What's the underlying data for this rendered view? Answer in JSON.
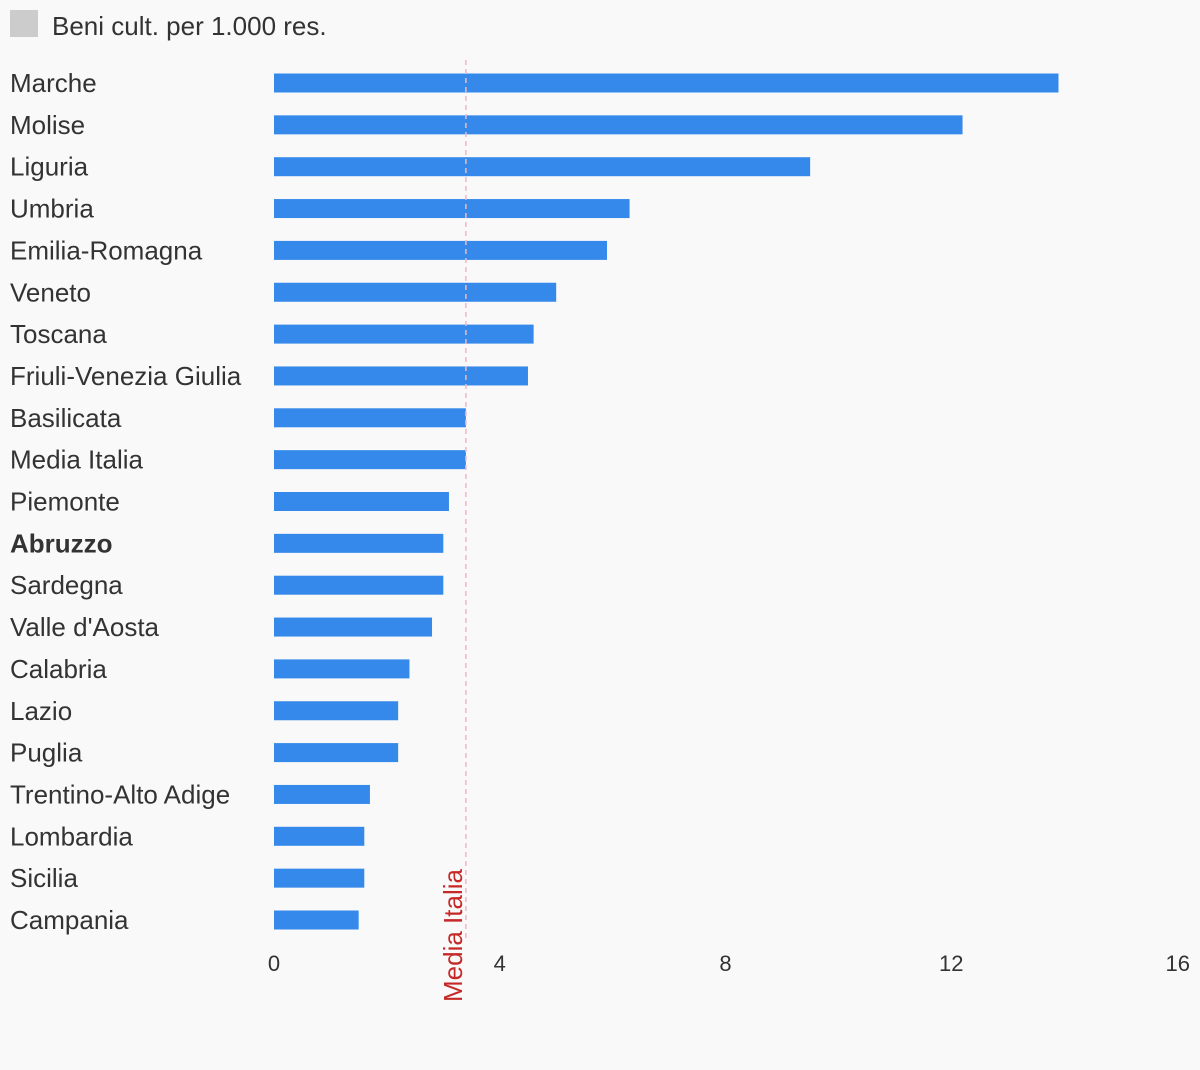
{
  "chart_data": {
    "type": "bar",
    "orientation": "horizontal",
    "categories": [
      "Marche",
      "Molise",
      "Liguria",
      "Umbria",
      "Emilia-Romagna",
      "Veneto",
      "Toscana",
      "Friuli-Venezia Giulia",
      "Basilicata",
      "Media Italia",
      "Piemonte",
      "Abruzzo",
      "Sardegna",
      "Valle d'Aosta",
      "Calabria",
      "Lazio",
      "Puglia",
      "Trentino-Alto Adige",
      "Lombardia",
      "Sicilia",
      "Campania"
    ],
    "highlighted_category": "Abruzzo",
    "series": [
      {
        "name": "Beni cult. per 1.000 res.",
        "values": [
          13.9,
          12.2,
          9.5,
          6.3,
          5.9,
          5.0,
          4.6,
          4.5,
          3.4,
          3.4,
          3.1,
          3.0,
          3.0,
          2.8,
          2.4,
          2.2,
          2.2,
          1.7,
          1.6,
          1.6,
          1.5
        ]
      }
    ],
    "xlim": [
      0,
      16
    ],
    "xticks": [
      0,
      4,
      8,
      12,
      16
    ],
    "reference_line": {
      "label": "Media Italia",
      "value": 3.4
    },
    "legend_position": "top-left",
    "grid": false,
    "bar_color": "#3589ea",
    "reference_line_color": "#f4b6c2",
    "reference_label_color": "#c62828",
    "legend_swatch_color": "#cccccc"
  }
}
